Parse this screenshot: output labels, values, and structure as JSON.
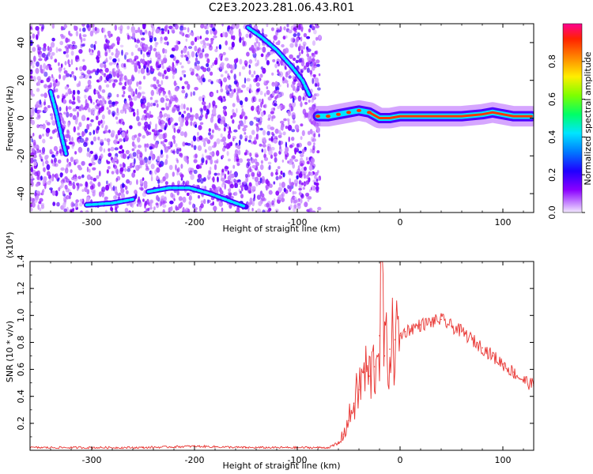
{
  "title": "C2E3.2023.281.06.43.R01",
  "chart_data": [
    {
      "type": "heatmap",
      "xlabel": "Height of straight line (km)",
      "ylabel": "Frequency (Hz)",
      "xlim": [
        -360,
        130
      ],
      "ylim": [
        -50,
        50
      ],
      "xticks": [
        -300,
        -200,
        -100,
        0,
        100
      ],
      "yticks": [
        -40,
        -20,
        0,
        20,
        40
      ],
      "noise_region_x": [
        -360,
        -78
      ],
      "colorbar": {
        "label": "Normalized spectral amplitude",
        "range": [
          0.0,
          1.0
        ],
        "ticks": [
          "0.0",
          "0.2",
          "0.4",
          "0.6",
          "0.8"
        ]
      },
      "features": [
        {
          "x": [
            -340,
            -335,
            -330,
            -325
          ],
          "y": [
            14,
            4,
            -8,
            -19
          ]
        },
        {
          "x": [
            -305,
            -280,
            -260
          ],
          "y": [
            -46,
            -45,
            -43
          ]
        },
        {
          "x": [
            -245,
            -225,
            -205,
            -185,
            -165,
            -150
          ],
          "y": [
            -39,
            -37,
            -37,
            -40,
            -44,
            -47
          ]
        },
        {
          "x": [
            -148,
            -135,
            -120,
            -105,
            -95,
            -88
          ],
          "y": [
            48,
            43,
            36,
            27,
            20,
            12
          ]
        },
        {
          "x": [
            -80,
            -70,
            -60,
            -50,
            -40,
            -30,
            -20,
            -10,
            0,
            20,
            40,
            60,
            80,
            90,
            100,
            110,
            128
          ],
          "y": [
            1,
            1,
            2,
            3,
            4,
            3,
            0,
            0,
            1,
            1,
            1,
            1,
            2,
            3,
            2,
            1,
            1
          ]
        }
      ]
    },
    {
      "type": "line",
      "xlabel": "Height of straight line (km)",
      "ylabel": "SNR (10 * v/v)",
      "y_multiplier": "(x10⁴)",
      "xlim": [
        -360,
        130
      ],
      "ylim": [
        0,
        1.4
      ],
      "xticks": [
        -300,
        -200,
        -100,
        0,
        100
      ],
      "yticks": [
        "0.2",
        "0.4",
        "0.6",
        "0.8",
        "1.0",
        "1.2",
        "1.4"
      ],
      "series": [
        {
          "color": "#e8322f",
          "x": [
            -360,
            -300,
            -250,
            -200,
            -150,
            -100,
            -70,
            -60,
            -55,
            -50,
            -45,
            -40,
            -35,
            -30,
            -25,
            -20,
            -18,
            -15,
            -10,
            -5,
            0,
            5,
            10,
            20,
            30,
            40,
            50,
            60,
            70,
            80,
            90,
            100,
            110,
            120,
            130
          ],
          "y": [
            0.02,
            0.02,
            0.02,
            0.03,
            0.02,
            0.02,
            0.02,
            0.05,
            0.12,
            0.22,
            0.35,
            0.45,
            0.58,
            0.55,
            0.62,
            0.85,
            1.4,
            0.7,
            0.75,
            0.82,
            0.85,
            0.88,
            0.9,
            0.93,
            0.95,
            0.97,
            0.92,
            0.88,
            0.82,
            0.76,
            0.7,
            0.64,
            0.58,
            0.52,
            0.48
          ]
        }
      ]
    }
  ]
}
